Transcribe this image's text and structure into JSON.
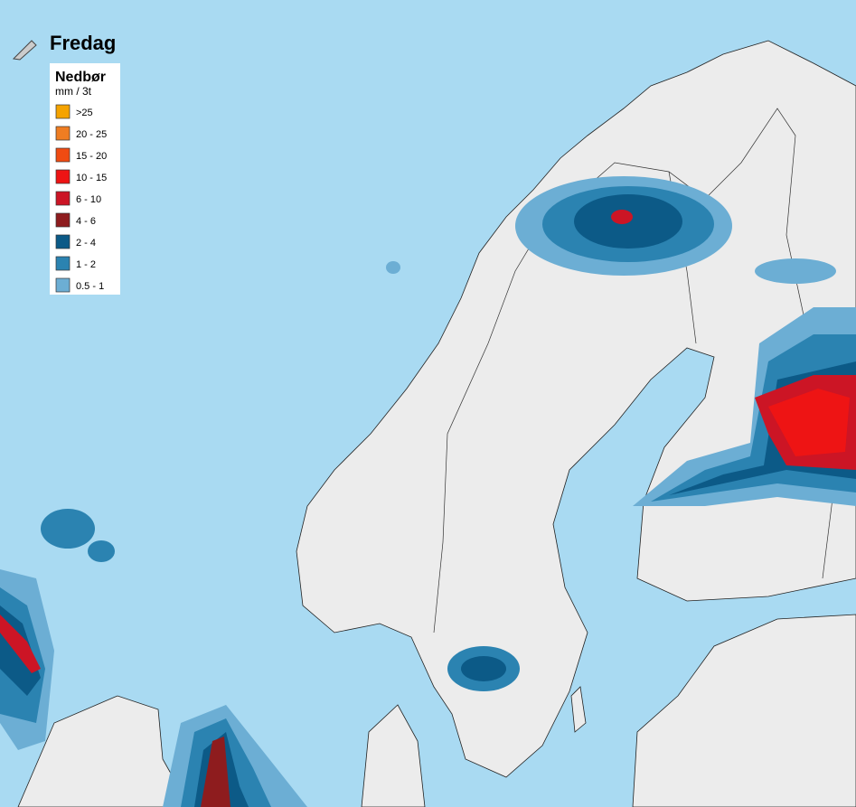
{
  "title": "Fredag",
  "legend": {
    "title": "Nedbør",
    "unit": "mm / 3t",
    "items": [
      {
        "label": ">25",
        "color": "#f5a300"
      },
      {
        "label": "20 - 25",
        "color": "#ef7d22"
      },
      {
        "label": "15 - 20",
        "color": "#f04b12"
      },
      {
        "label": "10 - 15",
        "color": "#ee1414"
      },
      {
        "label": "6 - 10",
        "color": "#cc1525"
      },
      {
        "label": "4 - 6",
        "color": "#8e1c1e"
      },
      {
        "label": "2 - 4",
        "color": "#0c5a87"
      },
      {
        "label": "1 - 2",
        "color": "#2b83b1"
      },
      {
        "label": "0.5 - 1",
        "color": "#6caed4"
      }
    ]
  }
}
